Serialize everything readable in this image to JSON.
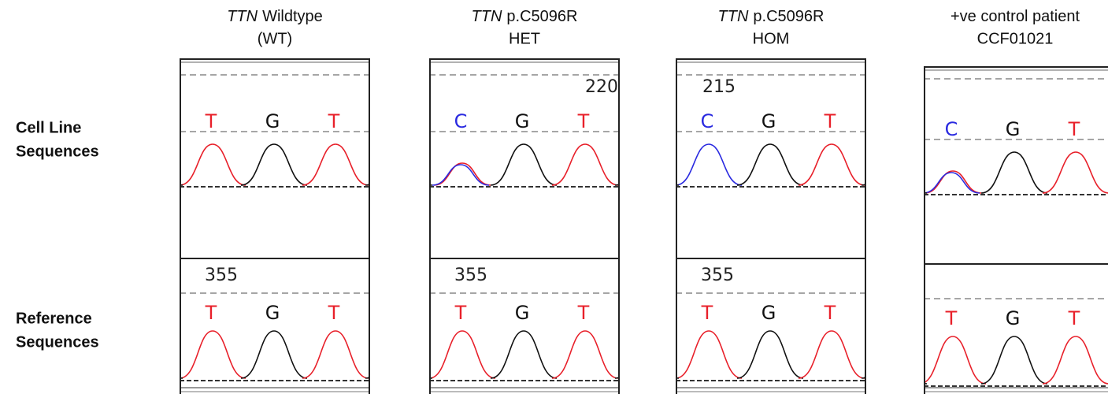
{
  "columns": [
    {
      "gene": "TTN",
      "label": "Wildtype",
      "sub": "(WT)"
    },
    {
      "gene": "TTN",
      "label": "p.C5096R",
      "sub": "HET"
    },
    {
      "gene": "TTN",
      "label": "p.C5096R",
      "sub": "HOM"
    },
    {
      "label": "+ve control patient",
      "sub": "CCF01021"
    }
  ],
  "row_labels": [
    [
      "Cell Line",
      "Sequences"
    ],
    [
      "Reference",
      "Sequences"
    ]
  ],
  "base_colors": {
    "T": "#e8202a",
    "G": "#111111",
    "C": "#2a2ae0"
  },
  "cell_line": [
    {
      "bases": [
        "T",
        "G",
        "T"
      ]
    },
    {
      "bases": [
        "C",
        "G",
        "T"
      ],
      "position": 220
    },
    {
      "bases": [
        "C",
        "G",
        "T"
      ],
      "position": 215
    },
    {
      "bases": [
        "C",
        "G",
        "T"
      ]
    }
  ],
  "reference": [
    {
      "bases": [
        "T",
        "G",
        "T"
      ],
      "position": 355
    },
    {
      "bases": [
        "T",
        "G",
        "T"
      ],
      "position": 355
    },
    {
      "bases": [
        "T",
        "G",
        "T"
      ],
      "position": 355
    },
    {
      "bases": [
        "T",
        "G",
        "T"
      ]
    }
  ]
}
